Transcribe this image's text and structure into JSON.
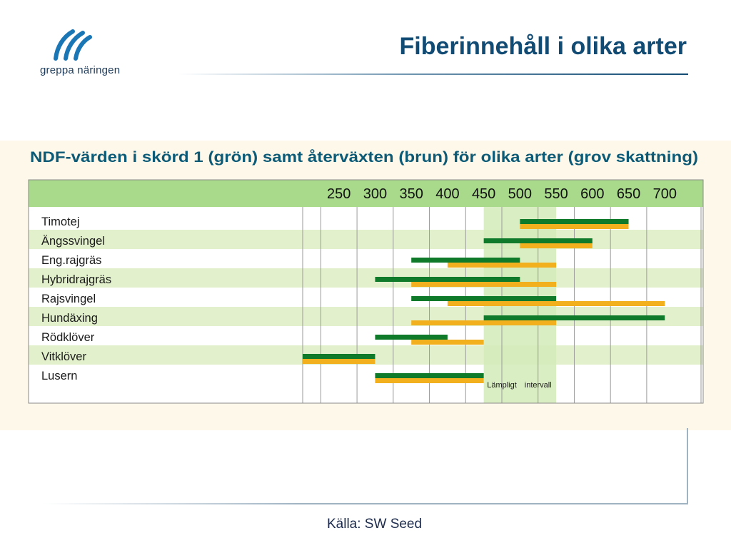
{
  "header": {
    "logo_text": "greppa näringen",
    "title": "Fiberinnehåll i olika arter"
  },
  "footer": {
    "source": "Källa: SW Seed"
  },
  "colors": {
    "title": "#114a73",
    "logo": "#1b76b5",
    "green_bar": "#0f7a2a",
    "orange_bar": "#f2b01e",
    "header_band": "#a9d98b",
    "row_band": "#e2f1cc",
    "range_fill": "#d4ebb8"
  },
  "chart_data": {
    "type": "bar",
    "subtype": "range",
    "title": "NDF-värden i skörd 1 (grön) samt återväxten (brun) för olika arter (grov skattning)",
    "x_ticks": [
      250,
      300,
      350,
      400,
      450,
      500,
      550,
      600,
      650,
      700
    ],
    "xlim": [
      200,
      750
    ],
    "grid": true,
    "recommended_range": [
      450,
      550
    ],
    "recommended_label_left": "Lämpligt",
    "recommended_label_right": "intervall",
    "categories": [
      "Timotej",
      "Ängssvingel",
      "Eng.rajgräs",
      "Hybridrajgräs",
      "Rajsvingel",
      "Hundäxing",
      "Rödklöver",
      "Vitklöver",
      "Lusern"
    ],
    "series": [
      {
        "name": "skörd 1 (grön)",
        "color": "#0f7a2a",
        "ranges": [
          [
            500,
            650
          ],
          [
            450,
            600
          ],
          [
            350,
            500
          ],
          [
            300,
            500
          ],
          [
            350,
            550
          ],
          [
            450,
            700
          ],
          [
            300,
            400
          ],
          [
            200,
            300
          ],
          [
            300,
            450
          ]
        ]
      },
      {
        "name": "återväxten (brun)",
        "color": "#f2b01e",
        "ranges": [
          [
            500,
            650
          ],
          [
            500,
            600
          ],
          [
            400,
            550
          ],
          [
            350,
            550
          ],
          [
            400,
            700
          ],
          [
            350,
            550
          ],
          [
            350,
            450
          ],
          [
            200,
            300
          ],
          [
            300,
            450
          ]
        ]
      }
    ]
  }
}
